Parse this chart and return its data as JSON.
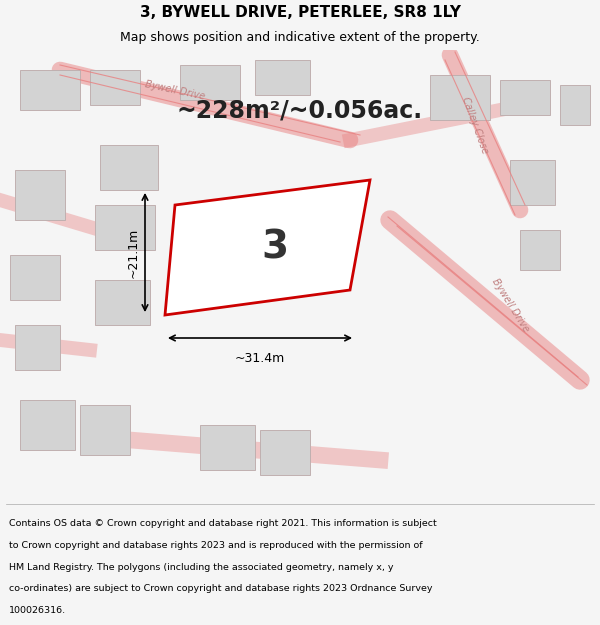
{
  "title": "3, BYWELL DRIVE, PETERLEE, SR8 1LY",
  "subtitle": "Map shows position and indicative extent of the property.",
  "area_text": "~228m²/~0.056ac.",
  "width_label": "~31.4m",
  "height_label": "~21.1m",
  "plot_number": "3",
  "footer_lines": [
    "Contains OS data © Crown copyright and database right 2021. This information is subject",
    "to Crown copyright and database rights 2023 and is reproduced with the permission of",
    "HM Land Registry. The polygons (including the associated geometry, namely x, y",
    "co-ordinates) are subject to Crown copyright and database rights 2023 Ordnance Survey",
    "100026316."
  ],
  "bg_color": "#f5f5f5",
  "map_bg": "#ffffff",
  "plot_fill": "#ffffff",
  "plot_edge": "#cc0000",
  "road_color": "#e8b0b0",
  "building_color": "#d3d3d3",
  "building_edge": "#c0b0b0",
  "road_line_color": "#e88080",
  "street_label_color": "#c08080",
  "title_color": "#000000",
  "footer_color": "#000000",
  "dim_color": "#000000"
}
